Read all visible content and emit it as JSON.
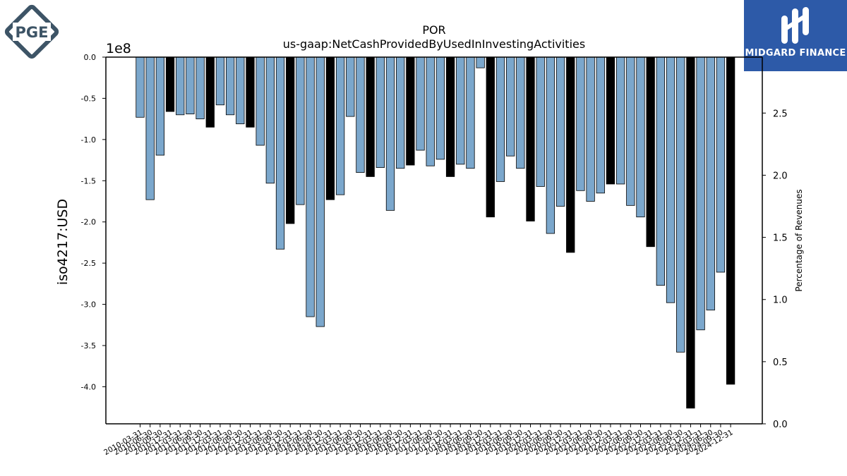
{
  "logos": {
    "left_text": "PGE",
    "right_text": "MIDGARD FINANCE"
  },
  "colors": {
    "bar_blue": "#7ba7cc",
    "bar_black": "#000000",
    "logo_slate": "#3d5466",
    "logo_blue": "#2d5aa8"
  },
  "chart_data": {
    "type": "bar",
    "title": "POR",
    "subtitle": "us-gaap:NetCashProvidedByUsedInInvestingActivities",
    "ylabel": "iso4217:USD",
    "y2label": "Percentage of Revenues",
    "y_offset_label": "1e8",
    "ylim": [
      -445000000.0,
      0
    ],
    "y_ticks": [
      "0.0",
      "-0.5",
      "-1.0",
      "-1.5",
      "-2.0",
      "-2.5",
      "-3.0",
      "-3.5",
      "-4.0"
    ],
    "y2lim": [
      0,
      2.95
    ],
    "y2_ticks": [
      "0.0",
      "0.5",
      "1.0",
      "1.5",
      "2.0",
      "2.5"
    ],
    "grid": false,
    "x_tick_labels": [
      "2010-03-31",
      "2010-06-30",
      "2010-09-30",
      "2010-12-31",
      "2011-03-31",
      "2011-06-30",
      "2011-09-30",
      "2011-12-31",
      "2012-03-31",
      "2012-06-30",
      "2012-09-30",
      "2012-12-31",
      "2013-03-31",
      "2013-06-30",
      "2013-09-30",
      "2013-12-31",
      "2014-03-31",
      "2014-06-30",
      "2014-09-30",
      "2014-12-31",
      "2015-03-31",
      "2015-06-30",
      "2015-09-30",
      "2015-12-31",
      "2016-03-31",
      "2016-06-30",
      "2016-09-30",
      "2016-12-31",
      "2017-03-31",
      "2017-06-30",
      "2017-09-30",
      "2017-12-31",
      "2018-03-31",
      "2018-06-30",
      "2018-09-30",
      "2018-12-31",
      "2019-03-31",
      "2019-06-30",
      "2019-09-30",
      "2019-12-31",
      "2020-03-31",
      "2020-06-30",
      "2020-09-30",
      "2020-12-31",
      "2021-03-31",
      "2021-06-30",
      "2021-09-30",
      "2021-12-31",
      "2022-03-31",
      "2022-06-30",
      "2022-09-30",
      "2022-12-31",
      "2023-03-31",
      "2023-06-30",
      "2023-09-30",
      "2023-12-31",
      "2024-03-31",
      "2024-06-30",
      "2024-09-30",
      "2024-12-31"
    ],
    "values": [
      -73000000,
      -173000000,
      -119000000,
      -66000000,
      -70000000,
      -69000000,
      -75000000,
      -85000000,
      -58000000,
      -70000000,
      -81000000,
      -85000000,
      -107000000,
      -153000000,
      -233000000,
      -202000000,
      -179000000,
      -315000000,
      -327000000,
      -173000000,
      -167000000,
      -72000000,
      -140000000,
      -145000000,
      -134000000,
      -186000000,
      -135000000,
      -131000000,
      -113000000,
      -132000000,
      -124000000,
      -145000000,
      -130000000,
      -135000000,
      -13000000,
      -194000000,
      -151000000,
      -120000000,
      -135000000,
      -199000000,
      -157000000,
      -214000000,
      -181000000,
      -237000000,
      -162000000,
      -175000000,
      -165000000,
      -154000000,
      -154000000,
      -180000000,
      -194000000,
      -230000000,
      -277000000,
      -298000000,
      -358000000,
      -426000000,
      -331000000,
      -307000000,
      -261000000,
      -397000000
    ],
    "bar_colors": [
      "blue",
      "blue",
      "blue",
      "black",
      "blue",
      "blue",
      "blue",
      "black",
      "blue",
      "blue",
      "blue",
      "black",
      "blue",
      "blue",
      "blue",
      "black",
      "blue",
      "blue",
      "blue",
      "black",
      "blue",
      "blue",
      "blue",
      "black",
      "blue",
      "blue",
      "blue",
      "black",
      "blue",
      "blue",
      "blue",
      "black",
      "blue",
      "blue",
      "blue",
      "black",
      "blue",
      "blue",
      "blue",
      "black",
      "blue",
      "blue",
      "blue",
      "black",
      "blue",
      "blue",
      "blue",
      "black",
      "blue",
      "blue",
      "blue",
      "black",
      "blue",
      "blue",
      "blue",
      "black",
      "blue",
      "blue",
      "blue",
      "black"
    ]
  }
}
